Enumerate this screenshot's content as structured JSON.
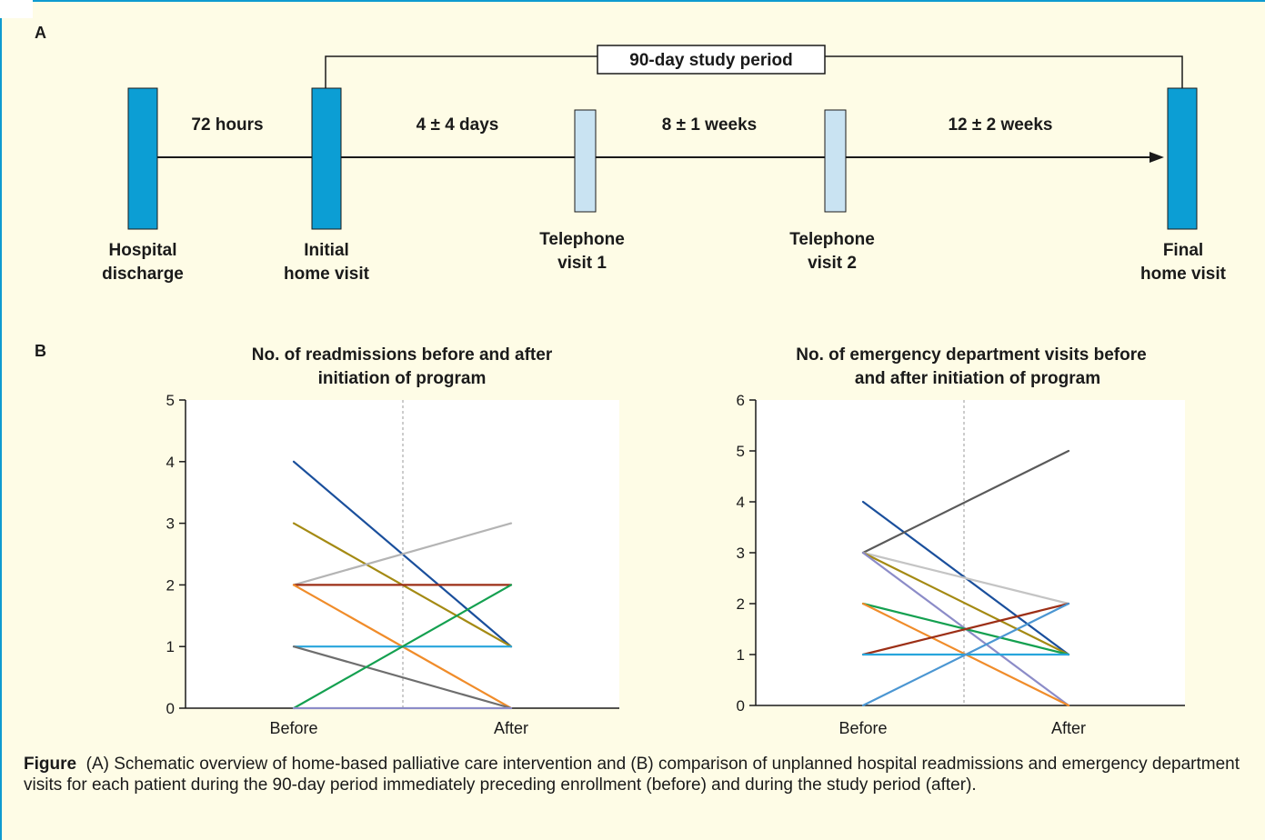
{
  "panel_a": {
    "label": "A",
    "study_period_label": "90-day study period",
    "milestones": [
      {
        "line1": "Hospital",
        "line2": "discharge"
      },
      {
        "line1": "Initial",
        "line2": "home visit"
      },
      {
        "line1": "Telephone",
        "line2": "visit 1"
      },
      {
        "line1": "Telephone",
        "line2": "visit 2"
      },
      {
        "line1": "Final",
        "line2": "home visit"
      }
    ],
    "intervals": [
      "72 hours",
      "4 ± 4 days",
      "8 ± 1 weeks",
      "12 ± 2 weeks"
    ],
    "colors": {
      "home_visit": "#0c9ed4",
      "telephone_visit": "#c9e3f2",
      "background": "#fefce6"
    }
  },
  "panel_b": {
    "label": "B"
  },
  "chart_data": [
    {
      "type": "line",
      "title_line1": "No. of readmissions before and after",
      "title_line2": "initiation of program",
      "categories": [
        "Before",
        "After"
      ],
      "ylim": [
        0,
        5
      ],
      "yticks": [
        "0",
        "1",
        "2",
        "3",
        "4",
        "5"
      ],
      "grid": false,
      "series": [
        {
          "values": [
            4,
            1
          ],
          "color": "#1a4f9c"
        },
        {
          "values": [
            3,
            1
          ],
          "color": "#a48a13"
        },
        {
          "values": [
            2,
            3
          ],
          "color": "#b4b4b4"
        },
        {
          "values": [
            2,
            2
          ],
          "color": "#9c2f16"
        },
        {
          "values": [
            2,
            0
          ],
          "color": "#f08c2a"
        },
        {
          "values": [
            1,
            1
          ],
          "color": "#27a5dc"
        },
        {
          "values": [
            1,
            0
          ],
          "color": "#6e6e6e"
        },
        {
          "values": [
            0,
            2
          ],
          "color": "#14a050"
        },
        {
          "values": [
            0,
            0
          ],
          "color": "#8c8cc8"
        }
      ]
    },
    {
      "type": "line",
      "title_line1": "No. of emergency department visits before",
      "title_line2": "and after initiation of program",
      "categories": [
        "Before",
        "After"
      ],
      "ylim": [
        0,
        6
      ],
      "yticks": [
        "0",
        "1",
        "2",
        "3",
        "4",
        "5",
        "6"
      ],
      "grid": false,
      "series": [
        {
          "values": [
            4,
            1
          ],
          "color": "#1a4f9c"
        },
        {
          "values": [
            3,
            5
          ],
          "color": "#5a5a5a"
        },
        {
          "values": [
            3,
            2
          ],
          "color": "#c4c4c4"
        },
        {
          "values": [
            3,
            1
          ],
          "color": "#a48a13"
        },
        {
          "values": [
            3,
            0
          ],
          "color": "#8c8cc8"
        },
        {
          "values": [
            2,
            1
          ],
          "color": "#14a050"
        },
        {
          "values": [
            2,
            0
          ],
          "color": "#f08c2a"
        },
        {
          "values": [
            1,
            2
          ],
          "color": "#9c2f16"
        },
        {
          "values": [
            1,
            1
          ],
          "color": "#27a5dc"
        },
        {
          "values": [
            0,
            2
          ],
          "color": "#4b96d2"
        }
      ]
    }
  ],
  "caption": {
    "label": "Figure",
    "text": "(A) Schematic overview of home-based palliative care intervention and (B) comparison of unplanned hospital readmissions and emergency department visits for each patient during the 90-day period immediately preceding enrollment (before) and during the study period (after)."
  }
}
